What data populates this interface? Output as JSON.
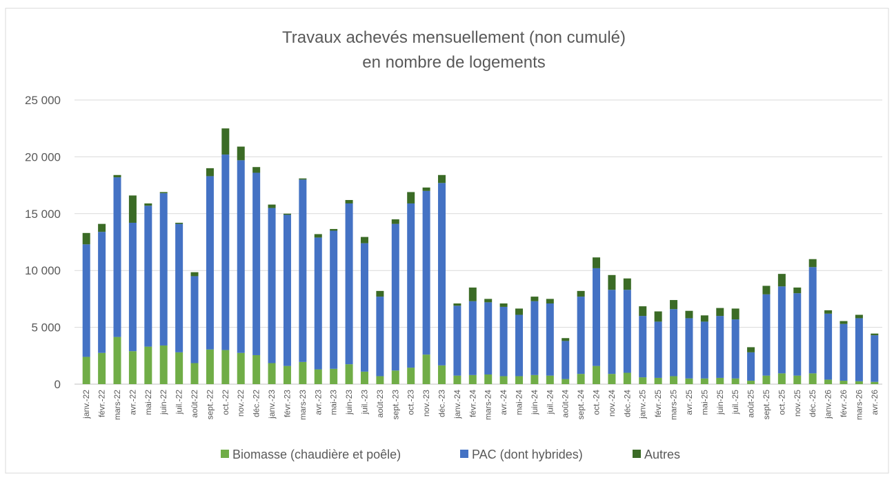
{
  "chart_data": {
    "type": "stacked_bar",
    "title": [
      "Travaux achevés mensuellement (non cumulé)",
      "en nombre de logements"
    ],
    "categories": [
      "janv.-22",
      "févr.-22",
      "mars-22",
      "avr.-22",
      "mai-22",
      "juin-22",
      "juil.-22",
      "août-22",
      "sept.-22",
      "oct.-22",
      "nov.-22",
      "déc.-22",
      "janv.-23",
      "févr.-23",
      "mars-23",
      "avr.-23",
      "mai-23",
      "juin-23",
      "juil.-23",
      "août-23",
      "sept.-23",
      "oct.-23",
      "nov.-23",
      "déc.-23",
      "janv.-24",
      "févr.-24",
      "mars-24",
      "avr.-24",
      "mai-24",
      "juin-24",
      "juil.-24",
      "août-24",
      "sept.-24",
      "oct.-24",
      "nov.-24",
      "déc.-24",
      "janv.-25",
      "févr.-25",
      "mars-25",
      "avr.-25",
      "mai-25",
      "juin-25",
      "juil.-25",
      "août-25",
      "sept.-25",
      "oct.-25",
      "nov.-25",
      "déc.-25",
      "janv.-26",
      "févr.-26",
      "mars-26",
      "avr.-26"
    ],
    "series": [
      {
        "name": "Biomasse (chaudière et poêle)",
        "color": "#70ad47",
        "values": [
          2400,
          2750,
          4150,
          2900,
          3300,
          3400,
          2800,
          1850,
          3050,
          3000,
          2750,
          2550,
          1850,
          1600,
          1950,
          1300,
          1350,
          1750,
          1100,
          700,
          1200,
          1450,
          2600,
          1650,
          750,
          800,
          850,
          700,
          700,
          800,
          750,
          450,
          900,
          1600,
          900,
          1000,
          600,
          550,
          700,
          500,
          500,
          550,
          500,
          300,
          750,
          950,
          750,
          950,
          400,
          300,
          250,
          200
        ]
      },
      {
        "name": "PAC (dont hybrides)",
        "color": "#4472c4",
        "values": [
          9900,
          10650,
          14050,
          11300,
          12400,
          13400,
          11300,
          7650,
          15250,
          17200,
          16950,
          16050,
          13650,
          13300,
          16050,
          11600,
          12150,
          14150,
          11300,
          7000,
          12900,
          14450,
          14400,
          16050,
          6150,
          6500,
          6350,
          6100,
          5400,
          6500,
          6350,
          3350,
          6800,
          8600,
          7400,
          7300,
          5400,
          4950,
          5900,
          5300,
          5000,
          5450,
          5200,
          2500,
          7150,
          7650,
          7250,
          9350,
          5800,
          5000,
          5550,
          4100
        ]
      },
      {
        "name": "Autres",
        "color": "#3b6b26",
        "values": [
          1000,
          700,
          200,
          2400,
          200,
          100,
          100,
          350,
          700,
          2300,
          1200,
          500,
          300,
          100,
          100,
          300,
          150,
          300,
          550,
          500,
          400,
          1000,
          300,
          700,
          200,
          1200,
          300,
          300,
          550,
          400,
          400,
          250,
          500,
          950,
          1300,
          1000,
          850,
          900,
          800,
          650,
          550,
          700,
          950,
          450,
          750,
          1100,
          500,
          700,
          300,
          250,
          300,
          150
        ]
      }
    ],
    "ylim": [
      0,
      25000
    ],
    "yticks": [
      {
        "value": 0,
        "label": "0"
      },
      {
        "value": 5000,
        "label": "5 000"
      },
      {
        "value": 10000,
        "label": "10 000"
      },
      {
        "value": 15000,
        "label": "15 000"
      },
      {
        "value": 20000,
        "label": "20 000"
      },
      {
        "value": 25000,
        "label": "25 000"
      }
    ],
    "grid": true,
    "legend": "bottom"
  }
}
